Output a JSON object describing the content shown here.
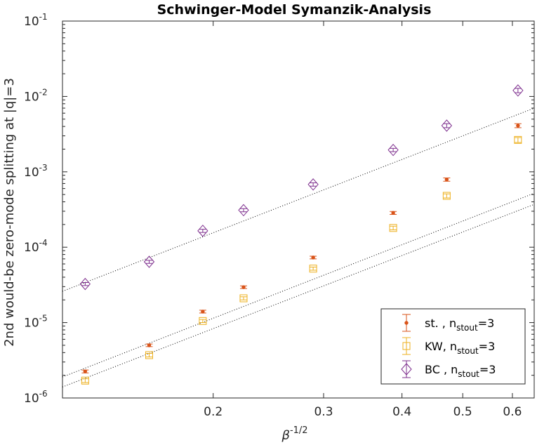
{
  "chart_data": {
    "type": "scatter",
    "title": "Schwinger-Model Symanzik-Analysis",
    "xlabel": {
      "base": "β",
      "sup": "-1/2"
    },
    "ylabel": "2nd would-be zero-mode splitting at |q|=3",
    "xscale": "log",
    "yscale": "log",
    "xlim": [
      0.115,
      0.65
    ],
    "ylim": [
      1e-06,
      0.1
    ],
    "x_ticks": [
      {
        "value": 0.2,
        "label": "0.2"
      },
      {
        "value": 0.3,
        "label": "0.3"
      },
      {
        "value": 0.4,
        "label": "0.4"
      },
      {
        "value": 0.5,
        "label": "0.5"
      },
      {
        "value": 0.6,
        "label": "0.6"
      }
    ],
    "y_ticks": [
      {
        "value": 1e-06,
        "base": "10",
        "exp": "-6"
      },
      {
        "value": 1e-05,
        "base": "10",
        "exp": "-5"
      },
      {
        "value": 0.0001,
        "base": "10",
        "exp": "-4"
      },
      {
        "value": 0.001,
        "base": "10",
        "exp": "-3"
      },
      {
        "value": 0.01,
        "base": "10",
        "exp": "-2"
      },
      {
        "value": 0.1,
        "base": "10",
        "exp": "-1"
      }
    ],
    "x": [
      0.125,
      0.1581,
      0.1925,
      0.2236,
      0.2887,
      0.3873,
      0.4714,
      0.6124
    ],
    "series": [
      {
        "name": "st. , n",
        "sub": "stout",
        "suffix": "=3",
        "marker": "dot",
        "color": "#D95319",
        "values": [
          2.25e-06,
          5e-06,
          1.4e-05,
          2.95e-05,
          7.3e-05,
          0.000285,
          0.00079,
          0.0041
        ],
        "errors": [
          1e-07,
          2e-07,
          6e-07,
          1.2e-06,
          3e-06,
          1.3e-05,
          4e-05,
          0.00025
        ]
      },
      {
        "name": "KW, n",
        "sub": "stout",
        "suffix": "=3",
        "marker": "square",
        "color": "#EDB120",
        "values": [
          1.7e-06,
          3.7e-06,
          1.05e-05,
          2.1e-05,
          5.2e-05,
          0.00018,
          0.00048,
          0.00265
        ],
        "errors": [
          1e-07,
          2e-07,
          5e-07,
          1e-06,
          2.5e-06,
          1e-05,
          3e-05,
          0.0002
        ]
      },
      {
        "name": "BC , n",
        "sub": "stout",
        "suffix": "=3",
        "marker": "diamond",
        "color": "#7E2F8E",
        "values": [
          3.25e-05,
          6.4e-05,
          0.000165,
          0.00031,
          0.00068,
          0.00195,
          0.0041,
          0.012
        ],
        "errors": [
          1.5e-06,
          3e-06,
          8e-06,
          1.5e-05,
          3.5e-05,
          0.0001,
          0.00025,
          0.0008
        ]
      }
    ],
    "fit_lines": [
      {
        "x": [
          0.115,
          0.65
        ],
        "y": [
          2.6e-05,
          0.007
        ]
      },
      {
        "x": [
          0.115,
          0.65
        ],
        "y": [
          1.9e-06,
          0.00052
        ]
      },
      {
        "x": [
          0.115,
          0.65
        ],
        "y": [
          1.4e-06,
          0.00037
        ]
      }
    ],
    "legend_position": "bottom-right",
    "grid": false
  }
}
